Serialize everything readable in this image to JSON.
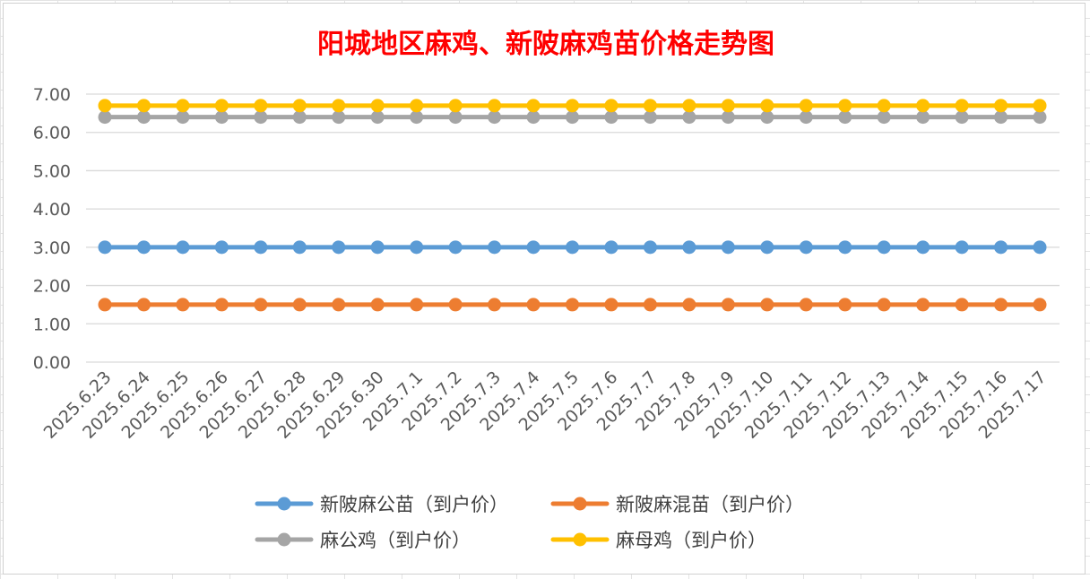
{
  "chart_data": {
    "type": "line",
    "title": "阳城地区麻鸡、新陂麻鸡苗价格走势图",
    "categories": [
      "2025.6.23",
      "2025.6.24",
      "2025.6.25",
      "2025.6.26",
      "2025.6.27",
      "2025.6.28",
      "2025.6.29",
      "2025.6.30",
      "2025.7.1",
      "2025.7.2",
      "2025.7.3",
      "2025.7.4",
      "2025.7.5",
      "2025.7.6",
      "2025.7.7",
      "2025.7.8",
      "2025.7.9",
      "2025.7.10",
      "2025.7.11",
      "2025.7.12",
      "2025.7.13",
      "2025.7.14",
      "2025.7.15",
      "2025.7.16",
      "2025.7.17"
    ],
    "y_ticks": [
      "0.00",
      "1.00",
      "2.00",
      "3.00",
      "4.00",
      "5.00",
      "6.00",
      "7.00"
    ],
    "ylim": [
      0,
      7
    ],
    "grid": true,
    "legend_position": "bottom",
    "series": [
      {
        "name": "新陂麻公苗（到户价）",
        "color": "#5b9bd5",
        "values": [
          3.0,
          3.0,
          3.0,
          3.0,
          3.0,
          3.0,
          3.0,
          3.0,
          3.0,
          3.0,
          3.0,
          3.0,
          3.0,
          3.0,
          3.0,
          3.0,
          3.0,
          3.0,
          3.0,
          3.0,
          3.0,
          3.0,
          3.0,
          3.0,
          3.0
        ]
      },
      {
        "name": "新陂麻混苗（到户价）",
        "color": "#ed7d31",
        "values": [
          1.5,
          1.5,
          1.5,
          1.5,
          1.5,
          1.5,
          1.5,
          1.5,
          1.5,
          1.5,
          1.5,
          1.5,
          1.5,
          1.5,
          1.5,
          1.5,
          1.5,
          1.5,
          1.5,
          1.5,
          1.5,
          1.5,
          1.5,
          1.5,
          1.5
        ]
      },
      {
        "name": "麻公鸡（到户价）",
        "color": "#a5a5a5",
        "values": [
          6.4,
          6.4,
          6.4,
          6.4,
          6.4,
          6.4,
          6.4,
          6.4,
          6.4,
          6.4,
          6.4,
          6.4,
          6.4,
          6.4,
          6.4,
          6.4,
          6.4,
          6.4,
          6.4,
          6.4,
          6.4,
          6.4,
          6.4,
          6.4,
          6.4
        ]
      },
      {
        "name": "麻母鸡（到户价）",
        "color": "#ffc000",
        "values": [
          6.7,
          6.7,
          6.7,
          6.7,
          6.7,
          6.7,
          6.7,
          6.7,
          6.7,
          6.7,
          6.7,
          6.7,
          6.7,
          6.7,
          6.7,
          6.7,
          6.7,
          6.7,
          6.7,
          6.7,
          6.7,
          6.7,
          6.7,
          6.7,
          6.7
        ]
      }
    ]
  }
}
